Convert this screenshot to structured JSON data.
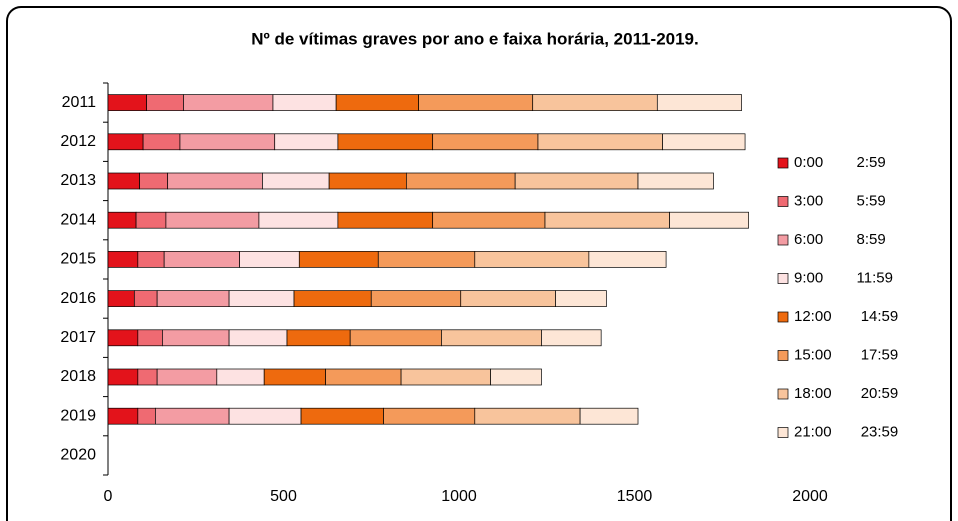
{
  "chart_data": {
    "type": "stacked-bar-horizontal",
    "title": "Nº de vítimas graves por ano e faixa horária, 2011-2019.",
    "categories": [
      "2011",
      "2012",
      "2013",
      "2014",
      "2015",
      "2016",
      "2017",
      "2018",
      "2019",
      "2020"
    ],
    "series": [
      {
        "name": "0:00        2:59",
        "color": "#e3131b",
        "values": [
          110,
          100,
          90,
          80,
          85,
          75,
          85,
          85,
          85,
          null
        ]
      },
      {
        "name": "3:00        5:59",
        "color": "#ef6a72",
        "values": [
          105,
          105,
          80,
          85,
          75,
          65,
          70,
          55,
          50,
          null
        ]
      },
      {
        "name": "6:00        8:59",
        "color": "#f39ca3",
        "values": [
          255,
          270,
          270,
          265,
          215,
          205,
          190,
          170,
          210,
          null
        ]
      },
      {
        "name": "9:00        11:59",
        "color": "#fde2e2",
        "values": [
          180,
          180,
          190,
          225,
          170,
          185,
          165,
          135,
          205,
          null
        ]
      },
      {
        "name": "12:00       14:59",
        "color": "#ee6a0e",
        "values": [
          235,
          270,
          220,
          270,
          225,
          220,
          180,
          175,
          235,
          null
        ]
      },
      {
        "name": "15:00       17:59",
        "color": "#f49a5a",
        "values": [
          325,
          300,
          310,
          320,
          275,
          255,
          260,
          215,
          260,
          null
        ]
      },
      {
        "name": "18:00       20:59",
        "color": "#f8c49c",
        "values": [
          355,
          355,
          350,
          355,
          325,
          270,
          285,
          255,
          300,
          null
        ]
      },
      {
        "name": "21:00       23:59",
        "color": "#fde6d6",
        "values": [
          240,
          235,
          215,
          225,
          220,
          145,
          170,
          145,
          165,
          null
        ]
      }
    ],
    "xlim": [
      0,
      2000
    ],
    "xticks": [
      0,
      500,
      1000,
      1500,
      2000
    ]
  }
}
